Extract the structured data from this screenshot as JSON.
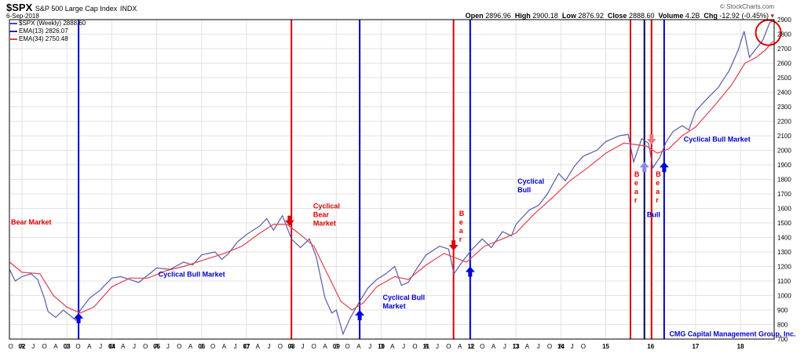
{
  "header": {
    "symbol": "$SPX",
    "name": "S&P 500 Large Cap Index",
    "exchange": "INDX",
    "date": "6-Sep-2018",
    "credit": "© StockCharts.com",
    "quote": {
      "open_label": "Open",
      "open": "2896.96",
      "high_label": "High",
      "high": "2900.18",
      "low_label": "Low",
      "low": "2876.92",
      "close_label": "Close",
      "close": "2888.60",
      "volume_label": "Volume",
      "volume": "4.2B",
      "chg_label": "Chg",
      "chg": "-12.92 (-0.45%)"
    }
  },
  "legend": [
    {
      "label": "$SPX (Weekly) 2888.60",
      "color": "#4a4a9a"
    },
    {
      "label": "EMA(13) 2826.07",
      "color": "#2a2aa0"
    },
    {
      "label": "EMA(34) 2750.48",
      "color": "#e04050"
    }
  ],
  "chart_data": {
    "type": "line",
    "x_range": [
      2001.72,
      2018.75
    ],
    "ylim": [
      700,
      2900
    ],
    "yticks": [
      700,
      800,
      900,
      1000,
      1100,
      1200,
      1300,
      1400,
      1500,
      1600,
      1700,
      1800,
      1900,
      2000,
      2100,
      2200,
      2300,
      2400,
      2500,
      2600,
      2700,
      2800,
      2900
    ],
    "year_labels": [
      "02",
      "03",
      "04",
      "05",
      "06",
      "07",
      "08",
      "09",
      "10",
      "11",
      "12",
      "13",
      "14",
      "15",
      "16",
      "17",
      "18"
    ],
    "month_labels": [
      "O",
      "A",
      "J",
      "O",
      "A",
      "J",
      "O",
      "A",
      "J",
      "O",
      "A",
      "J",
      "O",
      "A",
      "J",
      "O",
      "A",
      "J",
      "O",
      "A",
      "J",
      "O",
      "A",
      "J",
      "O",
      "A",
      "J",
      "O",
      "A",
      "J",
      "O",
      "A",
      "J",
      "O",
      "A",
      "J",
      "O",
      "A",
      "J",
      "O",
      "A",
      "J",
      "O",
      "A",
      "J",
      "O",
      "A",
      "J",
      "O",
      "A",
      "J",
      "O"
    ],
    "series": [
      {
        "color": "#5a5aa8",
        "points": [
          [
            2001.72,
            1180
          ],
          [
            2001.85,
            1100
          ],
          [
            2002.0,
            1130
          ],
          [
            2002.2,
            1150
          ],
          [
            2002.35,
            1110
          ],
          [
            2002.5,
            980
          ],
          [
            2002.58,
            890
          ],
          [
            2002.75,
            850
          ],
          [
            2002.92,
            900
          ],
          [
            2003.08,
            860
          ],
          [
            2003.2,
            830
          ],
          [
            2003.3,
            900
          ],
          [
            2003.5,
            980
          ],
          [
            2003.75,
            1040
          ],
          [
            2004.0,
            1120
          ],
          [
            2004.2,
            1130
          ],
          [
            2004.4,
            1110
          ],
          [
            2004.6,
            1090
          ],
          [
            2004.8,
            1140
          ],
          [
            2005.0,
            1190
          ],
          [
            2005.3,
            1180
          ],
          [
            2005.6,
            1230
          ],
          [
            2005.8,
            1210
          ],
          [
            2006.0,
            1280
          ],
          [
            2006.3,
            1300
          ],
          [
            2006.45,
            1250
          ],
          [
            2006.6,
            1290
          ],
          [
            2006.8,
            1370
          ],
          [
            2007.0,
            1420
          ],
          [
            2007.3,
            1480
          ],
          [
            2007.45,
            1530
          ],
          [
            2007.6,
            1450
          ],
          [
            2007.8,
            1550
          ],
          [
            2008.0,
            1390
          ],
          [
            2008.2,
            1330
          ],
          [
            2008.4,
            1390
          ],
          [
            2008.55,
            1270
          ],
          [
            2008.75,
            980
          ],
          [
            2008.9,
            880
          ],
          [
            2009.0,
            900
          ],
          [
            2009.15,
            735
          ],
          [
            2009.3,
            840
          ],
          [
            2009.5,
            950
          ],
          [
            2009.7,
            1050
          ],
          [
            2009.9,
            1110
          ],
          [
            2010.1,
            1150
          ],
          [
            2010.3,
            1200
          ],
          [
            2010.45,
            1070
          ],
          [
            2010.6,
            1090
          ],
          [
            2010.8,
            1190
          ],
          [
            2011.0,
            1280
          ],
          [
            2011.3,
            1340
          ],
          [
            2011.5,
            1320
          ],
          [
            2011.62,
            1150
          ],
          [
            2011.8,
            1230
          ],
          [
            2012.0,
            1310
          ],
          [
            2012.25,
            1390
          ],
          [
            2012.45,
            1330
          ],
          [
            2012.7,
            1440
          ],
          [
            2012.9,
            1410
          ],
          [
            2013.0,
            1490
          ],
          [
            2013.3,
            1590
          ],
          [
            2013.5,
            1620
          ],
          [
            2013.7,
            1700
          ],
          [
            2013.95,
            1840
          ],
          [
            2014.1,
            1790
          ],
          [
            2014.3,
            1890
          ],
          [
            2014.5,
            1960
          ],
          [
            2014.8,
            2000
          ],
          [
            2015.0,
            2060
          ],
          [
            2015.3,
            2100
          ],
          [
            2015.5,
            2110
          ],
          [
            2015.62,
            1920
          ],
          [
            2015.8,
            2080
          ],
          [
            2015.95,
            2050
          ],
          [
            2016.05,
            1880
          ],
          [
            2016.2,
            1950
          ],
          [
            2016.35,
            2060
          ],
          [
            2016.5,
            2130
          ],
          [
            2016.7,
            2170
          ],
          [
            2016.85,
            2140
          ],
          [
            2017.0,
            2270
          ],
          [
            2017.3,
            2370
          ],
          [
            2017.5,
            2430
          ],
          [
            2017.75,
            2550
          ],
          [
            2017.95,
            2690
          ],
          [
            2018.08,
            2820
          ],
          [
            2018.2,
            2640
          ],
          [
            2018.35,
            2700
          ],
          [
            2018.5,
            2760
          ],
          [
            2018.65,
            2880
          ],
          [
            2018.72,
            2890
          ]
        ]
      },
      {
        "color": "#e04050",
        "points": [
          [
            2001.72,
            1230
          ],
          [
            2002.0,
            1160
          ],
          [
            2002.4,
            1150
          ],
          [
            2002.7,
            1000
          ],
          [
            2003.0,
            920
          ],
          [
            2003.3,
            880
          ],
          [
            2003.6,
            920
          ],
          [
            2004.0,
            1060
          ],
          [
            2004.4,
            1120
          ],
          [
            2004.8,
            1120
          ],
          [
            2005.2,
            1170
          ],
          [
            2005.6,
            1200
          ],
          [
            2006.0,
            1240
          ],
          [
            2006.5,
            1290
          ],
          [
            2006.9,
            1340
          ],
          [
            2007.3,
            1430
          ],
          [
            2007.6,
            1490
          ],
          [
            2007.9,
            1490
          ],
          [
            2008.2,
            1420
          ],
          [
            2008.5,
            1340
          ],
          [
            2008.8,
            1150
          ],
          [
            2009.1,
            960
          ],
          [
            2009.35,
            900
          ],
          [
            2009.6,
            950
          ],
          [
            2009.9,
            1060
          ],
          [
            2010.3,
            1130
          ],
          [
            2010.6,
            1110
          ],
          [
            2011.0,
            1210
          ],
          [
            2011.4,
            1290
          ],
          [
            2011.65,
            1260
          ],
          [
            2011.9,
            1230
          ],
          [
            2012.3,
            1340
          ],
          [
            2012.7,
            1390
          ],
          [
            2013.0,
            1430
          ],
          [
            2013.4,
            1560
          ],
          [
            2013.8,
            1670
          ],
          [
            2014.2,
            1790
          ],
          [
            2014.6,
            1880
          ],
          [
            2015.0,
            1980
          ],
          [
            2015.4,
            2050
          ],
          [
            2015.65,
            2040
          ],
          [
            2015.9,
            2030
          ],
          [
            2016.15,
            1980
          ],
          [
            2016.4,
            2010
          ],
          [
            2016.7,
            2100
          ],
          [
            2017.0,
            2160
          ],
          [
            2017.4,
            2300
          ],
          [
            2017.8,
            2450
          ],
          [
            2018.1,
            2600
          ],
          [
            2018.35,
            2640
          ],
          [
            2018.55,
            2690
          ],
          [
            2018.72,
            2750
          ]
        ]
      }
    ],
    "vlines": [
      {
        "x": 2003.26,
        "color": "#0000cc"
      },
      {
        "x": 2008.0,
        "color": "#dd0000"
      },
      {
        "x": 2009.52,
        "color": "#0000cc"
      },
      {
        "x": 2011.61,
        "color": "#dd0000"
      },
      {
        "x": 2011.98,
        "color": "#0000cc"
      },
      {
        "x": 2015.55,
        "color": "#dd0000"
      },
      {
        "x": 2015.86,
        "color": "#000044"
      },
      {
        "x": 2016.02,
        "color": "#dd0000"
      },
      {
        "x": 2016.3,
        "color": "#0000cc"
      }
    ],
    "arrows": [
      {
        "x": 2003.26,
        "y": 880,
        "dir": "up",
        "color": "#0000dd"
      },
      {
        "x": 2007.96,
        "y": 1480,
        "dir": "down",
        "color": "#dd0000"
      },
      {
        "x": 2009.52,
        "y": 900,
        "dir": "up",
        "color": "#0000dd"
      },
      {
        "x": 2011.61,
        "y": 1310,
        "dir": "down",
        "color": "#dd0000"
      },
      {
        "x": 2011.98,
        "y": 1200,
        "dir": "up",
        "color": "#0000dd"
      },
      {
        "x": 2015.86,
        "y": 1920,
        "dir": "up",
        "color": "#8888ee"
      },
      {
        "x": 2016.02,
        "y": 2040,
        "dir": "down",
        "color": "#ee7777"
      },
      {
        "x": 2016.3,
        "y": 1920,
        "dir": "up",
        "color": "#0000dd"
      }
    ],
    "annotations": [
      {
        "lines": [
          "Bear Market"
        ],
        "x": 2001.72,
        "y": 1490,
        "color": "#dd0000"
      },
      {
        "lines": [
          "Cyclical Bull Market"
        ],
        "x": 2005.0,
        "y": 1130,
        "color": "#0000cc"
      },
      {
        "lines": [
          "Cyclical",
          "Bear",
          "Market"
        ],
        "x": 2008.45,
        "y": 1600,
        "color": "#dd0000"
      },
      {
        "lines": [
          "Cyclical Bull",
          "Market"
        ],
        "x": 2010.0,
        "y": 970,
        "color": "#0000cc"
      },
      {
        "lines": [
          "B",
          "e",
          "a",
          "r"
        ],
        "x": 2011.7,
        "y": 1550,
        "color": "#dd0000"
      },
      {
        "lines": [
          "Cyclical",
          "Bull"
        ],
        "x": 2013.0,
        "y": 1770,
        "color": "#0000cc"
      },
      {
        "lines": [
          "B",
          "e",
          "a",
          "r"
        ],
        "x": 2015.6,
        "y": 1820,
        "color": "#dd0000"
      },
      {
        "lines": [
          "Bull"
        ],
        "x": 2015.88,
        "y": 1540,
        "color": "#0000cc"
      },
      {
        "lines": [
          "B",
          "e",
          "a",
          "r"
        ],
        "x": 2016.08,
        "y": 1820,
        "color": "#dd0000"
      },
      {
        "lines": [
          "Cyclical Bull Market"
        ],
        "x": 2016.7,
        "y": 2060,
        "color": "#0000cc"
      },
      {
        "lines": [
          "CMG Capital Management Group, Inc."
        ],
        "x": 2016.38,
        "y": 720,
        "color": "#0000cc"
      }
    ],
    "highlight_circle": {
      "x": 2018.62,
      "y": 2810,
      "color": "#dd0000"
    }
  }
}
